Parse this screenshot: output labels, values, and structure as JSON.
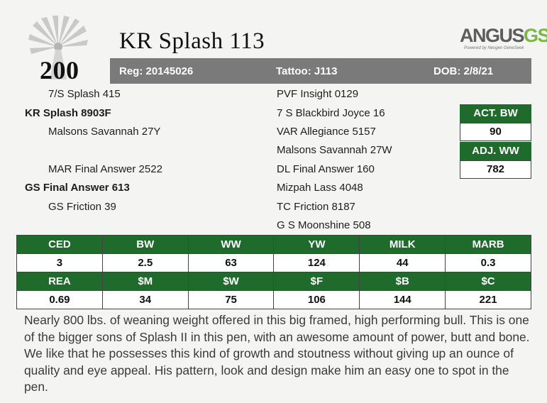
{
  "lot_number": "200",
  "animal_name": "KR Splash 113",
  "logo": {
    "main": "ANGUS",
    "accent": "GS",
    "tagline": "Powered by Neogen GeneSeek"
  },
  "id_bar": {
    "registration": "Reg: 20145026",
    "tattoo": "Tattoo: J113",
    "dob": "DOB: 2/8/21"
  },
  "pedigree_left": [
    "7/S Splash 415",
    "KR Splash 8903F",
    "Malsons Savannah 27Y",
    "MAR Final Answer 2522",
    "GS Final Answer 613",
    "GS Friction 39"
  ],
  "pedigree_right": [
    "PVF Insight 0129",
    "7 S Blackbird Joyce 16",
    "VAR Allegiance 5157",
    "Malsons Savannah 27W",
    "DL Final Answer 160",
    "Mizpah Lass 4048",
    "TC Friction 8187",
    "G S Moonshine 508"
  ],
  "weights": {
    "act_bw_label": "ACT. BW",
    "act_bw_value": "90",
    "adj_ww_label": "ADJ. WW",
    "adj_ww_value": "782"
  },
  "epds": {
    "row1_headers": [
      "CED",
      "BW",
      "WW",
      "YW",
      "MILK",
      "MARB"
    ],
    "row1_values": [
      "3",
      "2.5",
      "63",
      "124",
      "44",
      "0.3"
    ],
    "row2_headers": [
      "REA",
      "$M",
      "$W",
      "$F",
      "$B",
      "$C"
    ],
    "row2_values": [
      "0.69",
      "34",
      "75",
      "106",
      "144",
      "221"
    ]
  },
  "comments": "Nearly 800 lbs. of weaning weight offered in this big framed, high performing bull. This is one of the bigger sons of Splash II in this pen, with an awesome amount of power, butt and bone. We like that he possesses this kind of growth and stoutness without giving up an ounce of quality and eye appeal.  His pattern, look and design make him an easy one to spot in the pen.",
  "colors": {
    "header_green": "#1e6b2c",
    "bar_gray": "#7a7a7a",
    "logo_green": "#7ab648"
  }
}
